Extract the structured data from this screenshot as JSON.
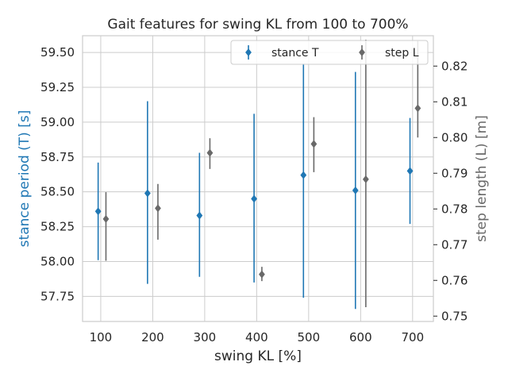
{
  "chart_data": {
    "type": "scatter",
    "title": "Gait features for swing KL from 100 to 700%",
    "xlabel": "swing KL [%]",
    "ylabel_left": "stance period (T) [s]",
    "ylabel_right": "step length (L) [m]",
    "xlim": [
      65,
      740
    ],
    "ylim_left": [
      57.57,
      59.62
    ],
    "ylim_right": [
      0.7485,
      0.8285
    ],
    "x_ticks": [
      100,
      200,
      300,
      400,
      500,
      600,
      700
    ],
    "x_tick_labels": [
      "100",
      "200",
      "300",
      "400",
      "500",
      "600",
      "700"
    ],
    "y_left_ticks": [
      57.75,
      58.0,
      58.25,
      58.5,
      58.75,
      59.0,
      59.25,
      59.5
    ],
    "y_left_tick_labels": [
      "57.75",
      "58.00",
      "58.25",
      "58.50",
      "58.75",
      "59.00",
      "59.25",
      "59.50"
    ],
    "y_right_ticks": [
      0.75,
      0.76,
      0.77,
      0.78,
      0.79,
      0.8,
      0.81,
      0.82
    ],
    "y_right_tick_labels": [
      "0.75",
      "0.76",
      "0.77",
      "0.78",
      "0.79",
      "0.80",
      "0.81",
      "0.82"
    ],
    "grid": true,
    "legend_placement": "top-right",
    "colors": {
      "left_axis": "#1f77b4",
      "right_axis": "#696969"
    },
    "series": [
      {
        "name": "stance T",
        "axis": "left",
        "color": "#1f77b4",
        "marker": "diamond",
        "x": [
          95,
          190,
          290,
          395,
          490,
          590,
          695
        ],
        "y": [
          58.36,
          58.49,
          58.33,
          58.45,
          58.62,
          58.51,
          58.65
        ],
        "err_low": [
          58.01,
          57.84,
          57.89,
          57.85,
          57.74,
          57.66,
          58.27
        ],
        "err_high": [
          58.71,
          59.15,
          58.78,
          59.06,
          59.42,
          59.36,
          59.03
        ]
      },
      {
        "name": "step L",
        "axis": "right",
        "color": "#696969",
        "marker": "diamond",
        "x": [
          110,
          210,
          310,
          410,
          510,
          610,
          710
        ],
        "y": [
          0.7772,
          0.7802,
          0.7957,
          0.7617,
          0.7982,
          0.7883,
          0.8082
        ],
        "err_low": [
          0.7655,
          0.7714,
          0.7912,
          0.7598,
          0.7903,
          0.7525,
          0.8
        ],
        "err_high": [
          0.7847,
          0.787,
          0.7998,
          0.7638,
          0.8057,
          0.8274,
          0.827
        ]
      }
    ]
  }
}
